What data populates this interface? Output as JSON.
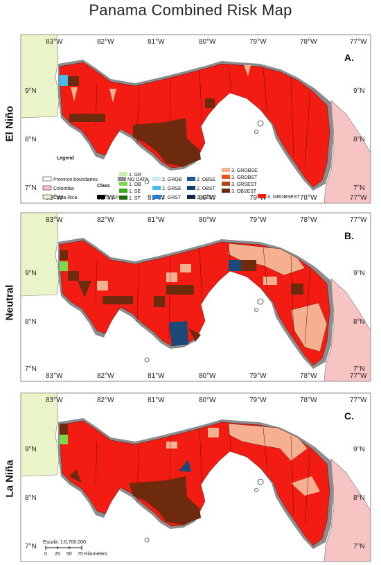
{
  "title": "Panama Combined Risk Map",
  "panels": [
    {
      "letter": "A.",
      "label": "El Niño"
    },
    {
      "letter": "B.",
      "label": "Neutral"
    },
    {
      "letter": "C.",
      "label": "La Niña"
    }
  ],
  "axes": {
    "lon_ticks": [
      "83°W",
      "82°W",
      "81°W",
      "80°W",
      "79°W",
      "78°W",
      "77°W"
    ],
    "lat_ticks": [
      "9°N",
      "8°N",
      "7°N"
    ]
  },
  "legend": {
    "title": "Legend",
    "class_title": "Class",
    "boundary_items": [
      {
        "label": "Province boundaries",
        "color": "#ffffff"
      },
      {
        "label": "Colombia",
        "color": "#f7c4c4"
      },
      {
        "label": "Costa Rica",
        "color": "#e9f4c8"
      }
    ],
    "class_items": [
      {
        "label": "NO DATA",
        "color": "#8c8c8c"
      },
      {
        "label": "0. SP",
        "color": "#000000"
      },
      {
        "label": "1. GR",
        "color": "#c6f2a8"
      },
      {
        "label": "1. OB",
        "color": "#7bd94a"
      },
      {
        "label": "1. SE",
        "color": "#3aa81c"
      },
      {
        "label": "1. ST",
        "color": "#1e6b10"
      },
      {
        "label": "2. GROB",
        "color": "#c9e9f7"
      },
      {
        "label": "2. GRSE",
        "color": "#49b8ec"
      },
      {
        "label": "2. GRST",
        "color": "#1f7fd0"
      },
      {
        "label": "2. OBSE",
        "color": "#1c5a9a"
      },
      {
        "label": "2. OBST",
        "color": "#13406f"
      },
      {
        "label": "2. SEST",
        "color": "#0d2a4d"
      },
      {
        "label": "3. GROBSE",
        "color": "#f5b08f"
      },
      {
        "label": "3. GROBST",
        "color": "#e8551c"
      },
      {
        "label": "3. GRSEST",
        "color": "#b34714"
      },
      {
        "label": "3. OBSEST",
        "color": "#6e2a0c"
      },
      {
        "label": "4. GROBSEST",
        "color": "#f31c12"
      }
    ]
  },
  "scale": {
    "label": "Escala: 1:6,700,000",
    "ticks": [
      "0",
      "25",
      "50",
      "75 Kilometers"
    ]
  },
  "colors": {
    "high_risk": "#f31c12",
    "obsest": "#6e2a0c",
    "grobse": "#f5b08f",
    "sest": "#1c4a78",
    "no_data": "#8c8c8c",
    "colombia": "#f7c4c4",
    "costa_rica": "#e9f4c8"
  }
}
